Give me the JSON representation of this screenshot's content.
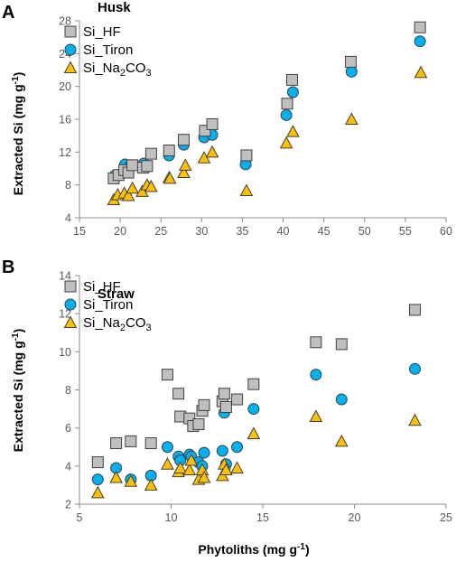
{
  "chart_data": [
    {
      "type": "scatter",
      "panel_label": "A",
      "title": "Husk",
      "xlabel": "",
      "ylabel": "Extracted Si (mg g-1)",
      "ylabel_parts": {
        "main": "Extracted Si (mg g",
        "sup": "-1",
        "close": ")"
      },
      "xlim": [
        15,
        60
      ],
      "ylim": [
        4,
        28
      ],
      "xticks": [
        15,
        20,
        25,
        30,
        35,
        40,
        45,
        50,
        55,
        60
      ],
      "yticks": [
        4,
        8,
        12,
        16,
        20,
        24,
        28
      ],
      "grid": false,
      "legend_position": "top-left",
      "series": [
        {
          "name": "Si_HF",
          "legend_parts": {
            "main": "Si_HF"
          },
          "marker": "square",
          "color": "#bfbfbf",
          "x": [
            19.2,
            19.8,
            20.5,
            21.0,
            21.5,
            22.8,
            23.3,
            23.8,
            26.0,
            27.8,
            30.4,
            31.3,
            35.5,
            40.5,
            41.1,
            48.3,
            56.8
          ],
          "y": [
            8.8,
            9.2,
            9.8,
            9.5,
            10.4,
            10.1,
            10.3,
            11.8,
            12.2,
            13.5,
            14.6,
            15.4,
            11.6,
            17.9,
            20.8,
            23.0,
            27.2
          ]
        },
        {
          "name": "Si_Tiron",
          "legend_parts": {
            "main": "Si_Tiron"
          },
          "marker": "circle",
          "color": "#00b0f0",
          "x": [
            19.3,
            20.0,
            20.6,
            21.3,
            22.9,
            23.3,
            26.0,
            27.8,
            30.3,
            31.3,
            35.4,
            40.4,
            41.2,
            48.4,
            56.8
          ],
          "y": [
            9.1,
            9.3,
            10.5,
            10.4,
            10.6,
            10.2,
            11.6,
            12.9,
            13.8,
            14.1,
            10.5,
            16.5,
            19.3,
            21.8,
            25.5
          ]
        },
        {
          "name": "Si_Na2CO3",
          "legend_parts": {
            "main": "Si_Na",
            "sub1": "2",
            "mid": "CO",
            "sub2": "3"
          },
          "marker": "triangle",
          "color": "#ffc000",
          "x": [
            19.2,
            19.7,
            20.5,
            21.0,
            21.5,
            22.7,
            23.3,
            23.8,
            26.0,
            26.1,
            27.8,
            28.0,
            30.3,
            31.3,
            35.5,
            40.4,
            41.2,
            48.4,
            56.9
          ],
          "y": [
            6.2,
            6.8,
            7.0,
            6.7,
            7.6,
            7.2,
            8.0,
            7.8,
            8.9,
            8.8,
            9.5,
            10.4,
            11.3,
            12.0,
            7.3,
            13.1,
            14.5,
            16.0,
            21.7
          ]
        }
      ]
    },
    {
      "type": "scatter",
      "panel_label": "B",
      "title": "Straw",
      "xlabel": "Phytoliths (mg g-1)",
      "xlabel_parts": {
        "main": "Phytoliths (mg g",
        "sup": "-1",
        "close": ")"
      },
      "ylabel": "Extracted Si (mg g-1)",
      "ylabel_parts": {
        "main": "Extracted Si (mg g",
        "sup": "-1",
        "close": ")"
      },
      "xlim": [
        5,
        25
      ],
      "ylim": [
        2,
        14
      ],
      "xticks": [
        5,
        10,
        15,
        20,
        25
      ],
      "yticks": [
        2,
        4,
        6,
        8,
        10,
        12,
        14
      ],
      "grid": false,
      "legend_position": "top-left",
      "series": [
        {
          "name": "Si_HF",
          "legend_parts": {
            "main": "Si_HF"
          },
          "marker": "square",
          "color": "#bfbfbf",
          "x": [
            6.0,
            7.0,
            7.8,
            8.9,
            9.8,
            10.4,
            10.5,
            11.0,
            11.2,
            11.5,
            11.7,
            11.8,
            12.8,
            12.9,
            13.0,
            13.6,
            14.5,
            17.9,
            19.3,
            23.3
          ],
          "y": [
            4.2,
            5.2,
            5.3,
            5.2,
            8.8,
            7.8,
            6.6,
            6.5,
            6.1,
            6.2,
            6.9,
            7.2,
            7.4,
            7.8,
            7.1,
            7.5,
            8.3,
            10.5,
            10.4,
            12.2
          ],
          "legend_extra": false
        },
        {
          "name": "Si_Tiron",
          "legend_parts": {
            "main": "Si_Tiron"
          },
          "marker": "circle",
          "color": "#00b0f0",
          "x": [
            6.0,
            7.0,
            7.8,
            8.9,
            9.8,
            10.4,
            10.5,
            11.0,
            11.1,
            11.5,
            11.7,
            11.8,
            12.8,
            12.9,
            13.0,
            13.6,
            14.5,
            17.9,
            19.3,
            23.3
          ],
          "y": [
            3.3,
            3.9,
            3.3,
            3.5,
            5.0,
            4.5,
            4.3,
            4.6,
            4.5,
            4.2,
            4.0,
            4.7,
            4.8,
            6.8,
            4.1,
            5.0,
            7.0,
            8.8,
            7.5,
            9.1
          ]
        },
        {
          "name": "Si_Na2CO3",
          "legend_parts": {
            "main": "Si_Na",
            "sub1": "2",
            "mid": "CO",
            "sub2": "3"
          },
          "marker": "triangle",
          "color": "#ffc000",
          "x": [
            6.0,
            7.0,
            7.8,
            8.9,
            9.8,
            10.4,
            10.5,
            11.0,
            11.1,
            11.5,
            11.7,
            11.8,
            12.8,
            12.9,
            13.0,
            13.6,
            14.5,
            17.9,
            19.3,
            23.3
          ],
          "y": [
            2.6,
            3.4,
            3.2,
            3.0,
            4.1,
            3.7,
            3.9,
            3.8,
            4.3,
            3.3,
            3.8,
            3.4,
            3.5,
            4.1,
            3.8,
            3.9,
            5.7,
            6.6,
            5.3,
            6.4
          ]
        }
      ]
    }
  ]
}
